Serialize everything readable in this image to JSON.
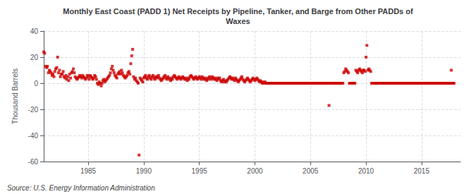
{
  "chart_data": {
    "type": "scatter",
    "title": "Monthly East Coast (PADD 1) Net Receipts by Pipeline, Tanker, and Barge from Other PADDs of\nWaxes",
    "ylabel": "Thousand Barrels",
    "annotations": [
      "Source: U.S. Energy Information Administration"
    ],
    "color": "#cc0000",
    "marker": "square",
    "grid": true,
    "xlim": [
      1981,
      2018.5
    ],
    "ylim": [
      -60,
      40
    ],
    "xticks": [
      1985,
      1990,
      1995,
      2000,
      2005,
      2010,
      2015
    ],
    "yticks": [
      -60,
      -40,
      -20,
      0,
      20,
      40
    ],
    "x": [
      1981.0,
      1981.08,
      1981.17,
      1981.25,
      1981.33,
      1981.42,
      1981.5,
      1981.58,
      1981.67,
      1981.75,
      1981.83,
      1981.92,
      1982.0,
      1982.08,
      1982.17,
      1982.25,
      1982.33,
      1982.42,
      1982.5,
      1982.58,
      1982.67,
      1982.75,
      1982.83,
      1982.92,
      1983.0,
      1983.08,
      1983.17,
      1983.25,
      1983.33,
      1983.42,
      1983.5,
      1983.58,
      1983.67,
      1983.75,
      1983.83,
      1983.92,
      1984.0,
      1984.08,
      1984.17,
      1984.25,
      1984.33,
      1984.42,
      1984.5,
      1984.58,
      1984.67,
      1984.75,
      1984.83,
      1984.92,
      1985.0,
      1985.08,
      1985.17,
      1985.25,
      1985.33,
      1985.42,
      1985.5,
      1985.58,
      1985.67,
      1985.75,
      1985.83,
      1985.92,
      1986.0,
      1986.08,
      1986.17,
      1986.25,
      1986.33,
      1986.42,
      1986.5,
      1986.58,
      1986.67,
      1986.75,
      1986.83,
      1986.92,
      1987.0,
      1987.08,
      1987.17,
      1987.25,
      1987.33,
      1987.42,
      1987.5,
      1987.58,
      1987.67,
      1987.75,
      1987.83,
      1987.92,
      1988.0,
      1988.08,
      1988.17,
      1988.25,
      1988.33,
      1988.42,
      1988.5,
      1988.58,
      1988.67,
      1988.75,
      1988.83,
      1988.92,
      1989.0,
      1989.08,
      1989.17,
      1989.25,
      1989.33,
      1989.42,
      1989.5,
      1989.58,
      1989.67,
      1989.75,
      1989.83,
      1989.92,
      1990.0,
      1990.08,
      1990.17,
      1990.25,
      1990.33,
      1990.42,
      1990.5,
      1990.58,
      1990.67,
      1990.75,
      1990.83,
      1990.92,
      1991.0,
      1991.08,
      1991.17,
      1991.25,
      1991.33,
      1991.42,
      1991.5,
      1991.58,
      1991.67,
      1991.75,
      1991.83,
      1991.92,
      1992.0,
      1992.08,
      1992.17,
      1992.25,
      1992.33,
      1992.42,
      1992.5,
      1992.58,
      1992.67,
      1992.75,
      1992.83,
      1992.92,
      1993.0,
      1993.08,
      1993.17,
      1993.25,
      1993.33,
      1993.42,
      1993.5,
      1993.58,
      1993.67,
      1993.75,
      1993.83,
      1993.92,
      1994.0,
      1994.08,
      1994.17,
      1994.25,
      1994.33,
      1994.42,
      1994.5,
      1994.58,
      1994.67,
      1994.75,
      1994.83,
      1994.92,
      1995.0,
      1995.08,
      1995.17,
      1995.25,
      1995.33,
      1995.42,
      1995.5,
      1995.58,
      1995.67,
      1995.75,
      1995.83,
      1995.92,
      1996.0,
      1996.08,
      1996.17,
      1996.25,
      1996.33,
      1996.42,
      1996.5,
      1996.58,
      1996.67,
      1996.75,
      1996.83,
      1996.92,
      1997.0,
      1997.08,
      1997.17,
      1997.25,
      1997.33,
      1997.42,
      1997.5,
      1997.58,
      1997.67,
      1997.75,
      1997.83,
      1997.92,
      1998.0,
      1998.08,
      1998.17,
      1998.25,
      1998.33,
      1998.42,
      1998.5,
      1998.58,
      1998.67,
      1998.75,
      1998.83,
      1998.92,
      1999.0,
      1999.08,
      1999.17,
      1999.25,
      1999.33,
      1999.42,
      1999.5,
      1999.58,
      1999.67,
      1999.75,
      1999.83,
      1999.92,
      2000.0,
      2000.08,
      2000.17,
      2000.25,
      2000.33,
      2000.42,
      2000.5,
      2000.58,
      2000.67,
      2000.75,
      2000.83,
      2000.92,
      2001.0,
      2001.08,
      2001.17,
      2001.25,
      2001.33,
      2001.42,
      2001.5,
      2001.58,
      2001.67,
      2001.75,
      2001.83,
      2001.92,
      2002.0,
      2002.08,
      2002.17,
      2002.25,
      2002.33,
      2002.42,
      2002.5,
      2002.58,
      2002.67,
      2002.75,
      2002.83,
      2002.92,
      2003.0,
      2003.08,
      2003.17,
      2003.25,
      2003.33,
      2003.42,
      2003.5,
      2003.58,
      2003.67,
      2003.75,
      2003.83,
      2003.92,
      2004.0,
      2004.08,
      2004.17,
      2004.25,
      2004.33,
      2004.42,
      2004.5,
      2004.58,
      2004.67,
      2004.75,
      2004.83,
      2004.92,
      2005.0,
      2005.08,
      2005.17,
      2005.25,
      2005.33,
      2005.42,
      2005.5,
      2005.58,
      2005.67,
      2005.75,
      2005.83,
      2005.92,
      2006.0,
      2006.08,
      2006.17,
      2006.25,
      2006.33,
      2006.42,
      2006.5,
      2006.58,
      2006.67,
      2006.75,
      2006.83,
      2006.92,
      2007.0,
      2007.08,
      2007.17,
      2007.25,
      2007.33,
      2007.42,
      2007.5,
      2007.58,
      2007.67,
      2007.75,
      2007.83,
      2007.92,
      2008.0,
      2008.08,
      2008.17,
      2008.25,
      2008.33,
      2008.42,
      2008.5,
      2008.58,
      2008.67,
      2008.75,
      2008.83,
      2008.92,
      2009.0,
      2009.08,
      2009.17,
      2009.25,
      2009.33,
      2009.42,
      2009.5,
      2009.58,
      2009.67,
      2009.75,
      2009.83,
      2009.92,
      2010.0,
      2010.08,
      2010.17,
      2010.25,
      2010.33,
      2010.42,
      2010.5,
      2010.58,
      2010.67,
      2010.75,
      2010.83,
      2010.92,
      2011.0,
      2011.08,
      2011.17,
      2011.25,
      2011.33,
      2011.42,
      2011.5,
      2011.58,
      2011.67,
      2011.75,
      2011.83,
      2011.92,
      2012.0,
      2012.08,
      2012.17,
      2012.25,
      2012.33,
      2012.42,
      2012.5,
      2012.58,
      2012.67,
      2012.75,
      2012.83,
      2012.92,
      2013.0,
      2013.08,
      2013.17,
      2013.25,
      2013.33,
      2013.42,
      2013.5,
      2013.58,
      2013.67,
      2013.75,
      2013.83,
      2013.92,
      2014.0,
      2014.08,
      2014.17,
      2014.25,
      2014.33,
      2014.42,
      2014.5,
      2014.58,
      2014.67,
      2014.75,
      2014.83,
      2014.92,
      2015.0,
      2015.08,
      2015.17,
      2015.25,
      2015.33,
      2015.42,
      2015.5,
      2015.58,
      2015.67,
      2015.75,
      2015.83,
      2015.92,
      2016.0,
      2016.08,
      2016.17,
      2016.25,
      2016.33,
      2016.42,
      2016.5,
      2016.58,
      2016.67,
      2016.75,
      2016.83,
      2016.92,
      2017.0,
      2017.08,
      2017.17,
      2017.25,
      2017.33,
      2017.42,
      2017.5,
      2017.58,
      2017.67,
      2017.75,
      2017.83,
      2017.92
    ],
    "values": [
      24,
      23,
      13,
      12,
      13,
      8,
      10,
      9,
      8,
      6,
      7,
      5,
      9,
      11,
      12,
      20,
      8,
      10,
      5,
      7,
      7,
      9,
      5,
      4,
      6,
      3,
      5,
      2,
      7,
      4,
      8,
      9,
      11,
      8,
      5,
      4,
      3,
      4,
      5,
      6,
      5,
      4,
      6,
      5,
      4,
      3,
      4,
      6,
      5,
      3,
      6,
      5,
      4,
      3,
      4,
      6,
      5,
      3,
      0,
      -1,
      1,
      0,
      -2,
      0,
      2,
      3,
      1,
      2,
      3,
      4,
      5,
      6,
      8,
      11,
      13,
      10,
      8,
      6,
      5,
      4,
      7,
      8,
      9,
      7,
      10,
      8,
      6,
      5,
      4,
      5,
      6,
      8,
      9,
      7,
      15,
      21,
      26,
      5,
      3,
      4,
      2,
      1,
      0,
      -55,
      4,
      3,
      2,
      1,
      4,
      5,
      6,
      4,
      3,
      5,
      6,
      4,
      3,
      5,
      6,
      4,
      3,
      5,
      4,
      5,
      6,
      4,
      3,
      2,
      3,
      4,
      5,
      6,
      4,
      3,
      5,
      4,
      3,
      2,
      4,
      3,
      5,
      6,
      5,
      4,
      3,
      4,
      5,
      4,
      3,
      4,
      5,
      4,
      3,
      4,
      3,
      2,
      4,
      3,
      5,
      6,
      5,
      4,
      3,
      4,
      5,
      4,
      3,
      4,
      5,
      4,
      3,
      5,
      4,
      3,
      4,
      3,
      2,
      4,
      3,
      5,
      4,
      3,
      5,
      4,
      3,
      4,
      3,
      2,
      4,
      3,
      4,
      2,
      1,
      2,
      3,
      1,
      2,
      1,
      2,
      3,
      4,
      5,
      4,
      3,
      4,
      3,
      2,
      4,
      3,
      2,
      1,
      2,
      3,
      4,
      5,
      3,
      2,
      1,
      2,
      3,
      4,
      3,
      2,
      1,
      2,
      3,
      4,
      3,
      2,
      3,
      4,
      3,
      2,
      1,
      2,
      1,
      0,
      1,
      0,
      1,
      0,
      0,
      0,
      0,
      0,
      0,
      0,
      0,
      0,
      0,
      0,
      0,
      0,
      0,
      0,
      0,
      0,
      0,
      0,
      0,
      0,
      0,
      0,
      0,
      0,
      0,
      0,
      0,
      0,
      0,
      0,
      0,
      0,
      0,
      0,
      0,
      0,
      0,
      0,
      0,
      0,
      0,
      0,
      0,
      0,
      0,
      0,
      0,
      0,
      0,
      0,
      0,
      0,
      0,
      0,
      0,
      0,
      0,
      0,
      0,
      0,
      0,
      0,
      0,
      0,
      0,
      0,
      0,
      -17,
      0,
      0,
      0,
      0,
      0,
      0,
      0,
      0,
      0,
      0,
      0,
      0,
      0,
      0,
      0,
      8,
      9,
      11,
      10,
      9,
      8,
      0,
      0,
      0,
      0,
      0,
      0,
      0,
      10,
      9,
      8,
      10,
      11,
      10,
      9,
      8,
      10,
      10,
      9,
      20,
      29,
      10,
      11,
      10,
      9,
      0,
      0,
      0,
      0,
      0,
      0,
      0,
      0,
      0,
      0,
      0,
      0,
      0,
      0,
      0,
      0,
      0,
      0,
      0,
      0,
      0,
      0,
      0,
      0,
      0,
      0,
      0,
      0,
      0,
      0,
      0,
      0,
      0,
      0,
      0,
      0,
      0,
      0,
      0,
      0,
      0,
      0,
      0,
      0,
      0,
      0,
      0,
      0,
      0,
      0,
      0,
      0,
      0,
      0,
      0,
      0,
      0,
      0,
      0,
      0,
      0,
      0,
      0,
      0,
      0,
      0,
      0,
      0,
      0,
      0,
      0,
      0,
      0,
      0,
      0,
      0,
      0,
      0,
      0,
      0,
      0,
      0,
      0,
      0,
      0,
      0,
      10,
      0,
      0,
      0
    ]
  }
}
